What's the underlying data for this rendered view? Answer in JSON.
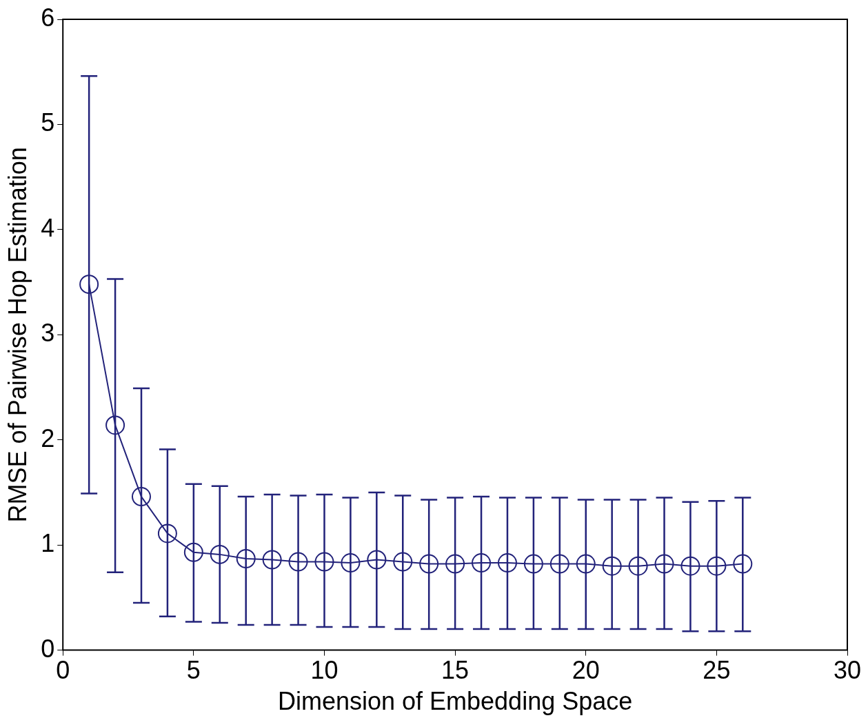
{
  "chart_data": {
    "type": "line",
    "xlabel": "Dimension of Embedding Space",
    "ylabel": "RMSE of Pairwise Hop Estimation",
    "x": [
      1,
      2,
      3,
      4,
      5,
      6,
      7,
      8,
      9,
      10,
      11,
      12,
      13,
      14,
      15,
      16,
      17,
      18,
      19,
      20,
      21,
      22,
      23,
      24,
      25,
      26
    ],
    "series": [
      {
        "color": "#22227a",
        "values": [
          3.48,
          2.14,
          1.46,
          1.11,
          0.93,
          0.91,
          0.87,
          0.86,
          0.84,
          0.84,
          0.83,
          0.86,
          0.84,
          0.82,
          0.82,
          0.83,
          0.83,
          0.82,
          0.82,
          0.82,
          0.8,
          0.8,
          0.82,
          0.8,
          0.8,
          0.82
        ],
        "errors": [
          [
            1.49,
            5.46
          ],
          [
            0.74,
            3.53
          ],
          [
            0.45,
            2.49
          ],
          [
            0.32,
            1.91
          ],
          [
            0.27,
            1.58
          ],
          [
            0.26,
            1.56
          ],
          [
            0.24,
            1.46
          ],
          [
            0.24,
            1.48
          ],
          [
            0.24,
            1.47
          ],
          [
            0.22,
            1.48
          ],
          [
            0.22,
            1.45
          ],
          [
            0.22,
            1.5
          ],
          [
            0.2,
            1.47
          ],
          [
            0.2,
            1.43
          ],
          [
            0.2,
            1.45
          ],
          [
            0.2,
            1.46
          ],
          [
            0.2,
            1.45
          ],
          [
            0.2,
            1.45
          ],
          [
            0.2,
            1.45
          ],
          [
            0.2,
            1.43
          ],
          [
            0.2,
            1.43
          ],
          [
            0.2,
            1.43
          ],
          [
            0.2,
            1.45
          ],
          [
            0.18,
            1.41
          ],
          [
            0.18,
            1.42
          ],
          [
            0.18,
            1.45
          ]
        ]
      }
    ],
    "marker": "circle",
    "line_style": "solid",
    "grid": false,
    "legend": false,
    "xlim": [
      0,
      30
    ],
    "xticks": [
      0,
      5,
      10,
      15,
      20,
      25,
      30
    ],
    "ylim": [
      0,
      6
    ],
    "yticks": [
      0,
      1,
      2,
      3,
      4,
      5,
      6
    ]
  }
}
